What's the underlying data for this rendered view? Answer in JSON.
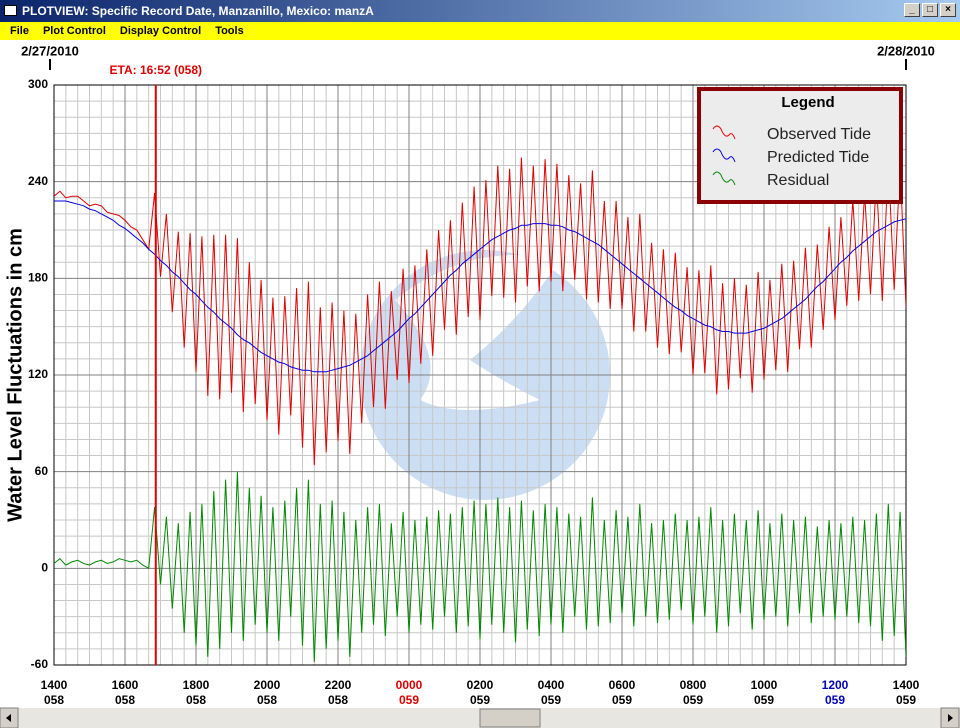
{
  "window": {
    "title": "PLOTVIEW: Specific Record Date, Manzanillo, Mexico: manzA",
    "menu": [
      "File",
      "Plot Control",
      "Display Control",
      "Tools"
    ]
  },
  "chart_data": {
    "type": "line",
    "y_label": "Water Level Fluctuations in cm",
    "legend_title": "Legend",
    "legend": "top-right",
    "xlim": [
      0,
      1440
    ],
    "ylim": [
      -60,
      300
    ],
    "yticks": [
      -60,
      0,
      60,
      120,
      180,
      240,
      300
    ],
    "xticks": [
      {
        "value": 0,
        "label": "1400"
      },
      {
        "value": 120,
        "label": "1600"
      },
      {
        "value": 240,
        "label": "1800"
      },
      {
        "value": 360,
        "label": "2000"
      },
      {
        "value": 480,
        "label": "2200"
      },
      {
        "value": 600,
        "label": "0000"
      },
      {
        "value": 720,
        "label": "0200"
      },
      {
        "value": 840,
        "label": "0400"
      },
      {
        "value": 960,
        "label": "0600"
      },
      {
        "value": 1080,
        "label": "0800"
      },
      {
        "value": 1200,
        "label": "1000"
      },
      {
        "value": 1320,
        "label": "1200"
      },
      {
        "value": 1440,
        "label": "1400"
      }
    ],
    "xtick_days": [
      "058",
      "058",
      "058",
      "058",
      "058",
      "059",
      "059",
      "059",
      "059",
      "059",
      "059",
      "059",
      "059"
    ],
    "xtick_colors": [
      "#000000",
      "#000000",
      "#000000",
      "#000000",
      "#000000",
      "#e00000",
      "#000000",
      "#000000",
      "#000000",
      "#000000",
      "#000000",
      "#0000c0",
      "#000000"
    ],
    "date_ticks": [
      {
        "value": 0,
        "label": "2/27/2010"
      },
      {
        "value": 1440,
        "label": "2/28/2010"
      }
    ],
    "annotations": [
      {
        "x": 172,
        "label": "ETA: 16:52 (058)",
        "color": "#e00000"
      }
    ],
    "grid": true,
    "minor_grid_divisions": 6,
    "x": [
      0,
      10,
      20,
      30,
      40,
      50,
      60,
      70,
      80,
      90,
      100,
      110,
      120,
      130,
      140,
      150,
      160,
      170,
      180,
      190,
      200,
      210,
      220,
      230,
      240,
      250,
      260,
      270,
      280,
      290,
      300,
      310,
      320,
      330,
      340,
      350,
      360,
      370,
      380,
      390,
      400,
      410,
      420,
      430,
      440,
      450,
      460,
      470,
      480,
      490,
      500,
      510,
      520,
      530,
      540,
      550,
      560,
      570,
      580,
      590,
      600,
      610,
      620,
      630,
      640,
      650,
      660,
      670,
      680,
      690,
      700,
      710,
      720,
      730,
      740,
      750,
      760,
      770,
      780,
      790,
      800,
      810,
      820,
      830,
      840,
      850,
      860,
      870,
      880,
      890,
      900,
      910,
      920,
      930,
      940,
      950,
      960,
      970,
      980,
      990,
      1000,
      1010,
      1020,
      1030,
      1040,
      1050,
      1060,
      1070,
      1080,
      1090,
      1100,
      1110,
      1120,
      1130,
      1140,
      1150,
      1160,
      1170,
      1180,
      1190,
      1200,
      1210,
      1220,
      1230,
      1240,
      1250,
      1260,
      1270,
      1280,
      1290,
      1300,
      1310,
      1320,
      1330,
      1340,
      1350,
      1360,
      1370,
      1380,
      1390,
      1400,
      1410,
      1420,
      1430,
      1440
    ],
    "series": [
      {
        "name": "Observed Tide",
        "color": "#e00000",
        "values": [
          231,
          234,
          230,
          231,
          231,
          228,
          225,
          226,
          225,
          221,
          220,
          219,
          216,
          212,
          210,
          204,
          198,
          233,
          181,
          220,
          159,
          209,
          137,
          208,
          122,
          206,
          107,
          207,
          105,
          207,
          109,
          205,
          97,
          190,
          102,
          179,
          92,
          168,
          83,
          169,
          95,
          174,
          75,
          178,
          64,
          162,
          72,
          165,
          79,
          160,
          71,
          158,
          90,
          170,
          100,
          178,
          99,
          172,
          117,
          186,
          115,
          188,
          127,
          198,
          132,
          210,
          148,
          216,
          145,
          227,
          156,
          237,
          154,
          241,
          169,
          250,
          168,
          248,
          165,
          255,
          175,
          250,
          172,
          254,
          178,
          251,
          172,
          244,
          179,
          239,
          167,
          247,
          165,
          228,
          161,
          228,
          161,
          218,
          147,
          220,
          147,
          202,
          137,
          198,
          133,
          196,
          134,
          187,
          120,
          185,
          121,
          188,
          108,
          177,
          111,
          180,
          118,
          176,
          109,
          184,
          117,
          179,
          123,
          189,
          122,
          191,
          136,
          199,
          137,
          201,
          148,
          212,
          154,
          218,
          163,
          229,
          166,
          233,
          170,
          243,
          166,
          253,
          173,
          251,
          162
        ]
      },
      {
        "name": "Predicted Tide",
        "color": "#0000e0",
        "values": [
          228,
          228,
          228,
          227,
          226,
          225,
          223,
          222,
          220,
          218,
          216,
          213,
          211,
          208,
          205,
          202,
          198,
          195,
          191,
          188,
          184,
          181,
          177,
          173,
          170,
          166,
          162,
          159,
          155,
          152,
          149,
          145,
          142,
          140,
          137,
          134,
          132,
          130,
          128,
          127,
          125,
          124,
          123,
          123,
          122,
          122,
          122,
          123,
          124,
          125,
          126,
          128,
          130,
          132,
          135,
          138,
          141,
          144,
          147,
          151,
          155,
          158,
          162,
          166,
          170,
          174,
          178,
          182,
          185,
          189,
          192,
          195,
          198,
          201,
          204,
          206,
          208,
          210,
          211,
          213,
          213,
          214,
          214,
          214,
          213,
          213,
          212,
          210,
          209,
          207,
          205,
          203,
          201,
          198,
          195,
          192,
          189,
          186,
          183,
          180,
          177,
          174,
          171,
          168,
          165,
          162,
          160,
          157,
          155,
          153,
          151,
          150,
          148,
          147,
          147,
          146,
          146,
          146,
          147,
          148,
          149,
          151,
          153,
          155,
          158,
          161,
          164,
          167,
          171,
          175,
          178,
          182,
          186,
          190,
          193,
          197,
          200,
          203,
          206,
          209,
          211,
          213,
          215,
          216,
          217
        ]
      },
      {
        "name": "Residual",
        "color": "#008800",
        "values": [
          3,
          6,
          2,
          4,
          5,
          3,
          2,
          4,
          5,
          3,
          4,
          6,
          5,
          4,
          5,
          2,
          0,
          38,
          -10,
          32,
          -25,
          28,
          -40,
          35,
          -48,
          40,
          -55,
          48,
          -50,
          55,
          -40,
          60,
          -45,
          50,
          -35,
          45,
          -40,
          38,
          -45,
          42,
          -30,
          50,
          -48,
          55,
          -58,
          40,
          -50,
          42,
          -45,
          35,
          -55,
          30,
          -40,
          38,
          -35,
          40,
          -42,
          28,
          -30,
          35,
          -40,
          30,
          -35,
          32,
          -38,
          36,
          -30,
          34,
          -40,
          38,
          -36,
          42,
          -44,
          40,
          -35,
          44,
          -40,
          38,
          -46,
          42,
          -38,
          36,
          -42,
          40,
          -35,
          38,
          -40,
          34,
          -30,
          32,
          -38,
          44,
          -36,
          30,
          -34,
          36,
          -28,
          32,
          -36,
          40,
          -30,
          28,
          -34,
          30,
          -32,
          34,
          -26,
          30,
          -35,
          32,
          -30,
          38,
          -40,
          30,
          -36,
          34,
          -28,
          30,
          -38,
          36,
          -32,
          28,
          -30,
          34,
          -36,
          30,
          -28,
          32,
          -34,
          26,
          -30,
          30,
          -32,
          28,
          -30,
          32,
          -34,
          30,
          -36,
          34,
          -45,
          40,
          -42,
          35,
          -55
        ]
      }
    ]
  }
}
